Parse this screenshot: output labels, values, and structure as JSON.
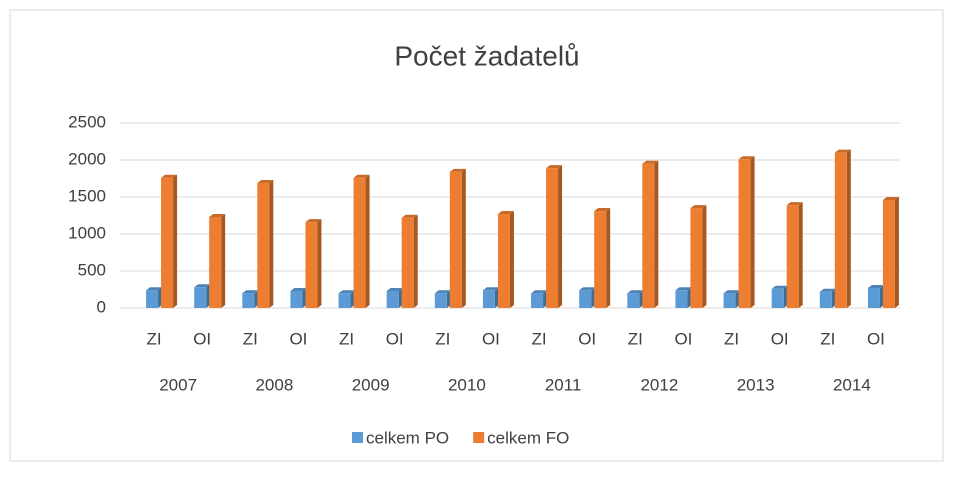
{
  "chart_data": {
    "type": "bar3d",
    "title": "Počet žadatelů",
    "categories": [
      "ZI",
      "OI",
      "ZI",
      "OI",
      "ZI",
      "OI",
      "ZI",
      "OI",
      "ZI",
      "OI",
      "ZI",
      "OI",
      "ZI",
      "OI",
      "ZI",
      "OI"
    ],
    "category_groups": [
      "2007",
      "2008",
      "2009",
      "2010",
      "2011",
      "2012",
      "2013",
      "2014"
    ],
    "series": [
      {
        "name": "celkem PO",
        "color": "#5b9bd5",
        "values": [
          240,
          280,
          200,
          230,
          200,
          230,
          200,
          240,
          200,
          240,
          200,
          240,
          200,
          260,
          220,
          270
        ]
      },
      {
        "name": "celkem FO",
        "color": "#ed7d31",
        "values": [
          1760,
          1230,
          1690,
          1160,
          1760,
          1220,
          1840,
          1270,
          1890,
          1310,
          1950,
          1350,
          2010,
          1390,
          2100,
          1460
        ]
      }
    ],
    "ylim": [
      0,
      2500
    ],
    "yticks": [
      0,
      500,
      1000,
      1500,
      2000,
      2500
    ],
    "grid": true,
    "legend": "bottom"
  }
}
